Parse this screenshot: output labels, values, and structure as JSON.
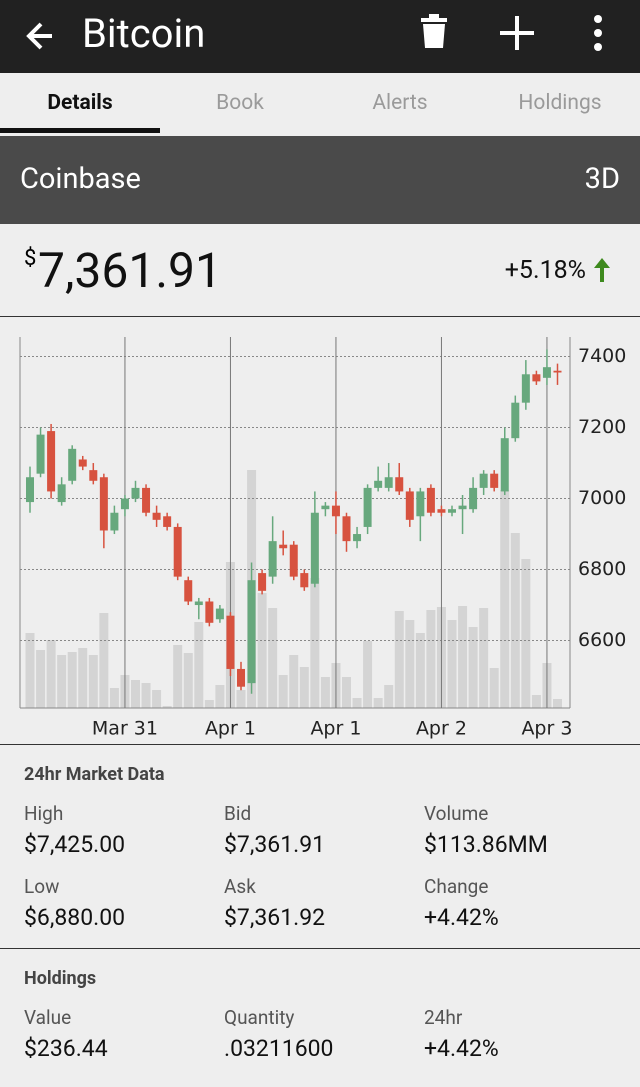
{
  "header": {
    "title": "Bitcoin"
  },
  "tabs": [
    "Details",
    "Book",
    "Alerts",
    "Holdings"
  ],
  "exchange": {
    "name": "Coinbase",
    "range": "3D"
  },
  "price": {
    "currency": "$",
    "value": "7,361.91",
    "change": "+5.18%"
  },
  "chart_data": {
    "type": "candlestick",
    "categories": [
      null,
      null,
      null,
      null,
      null,
      null,
      null,
      null,
      null,
      "Mar 31",
      null,
      null,
      null,
      null,
      null,
      null,
      null,
      null,
      null,
      "Apr 1",
      null,
      null,
      null,
      null,
      null,
      null,
      null,
      null,
      null,
      "Apr 1",
      null,
      null,
      null,
      null,
      null,
      null,
      null,
      null,
      null,
      "Apr 2",
      null,
      null,
      null,
      null,
      null,
      null,
      null,
      null,
      null,
      "Apr 3",
      null
    ],
    "open": [
      6990,
      7070,
      7190,
      6990,
      7050,
      7110,
      7080,
      7060,
      6910,
      6970,
      7000,
      7030,
      6960,
      6950,
      6920,
      6770,
      6700,
      6710,
      6660,
      6670,
      6520,
      6480,
      6790,
      6780,
      6870,
      6870,
      6790,
      6760,
      6970,
      6980,
      6950,
      6880,
      6920,
      7030,
      7030,
      7060,
      7020,
      6950,
      7030,
      6970,
      6960,
      6970,
      6970,
      7030,
      7070,
      7020,
      7170,
      7270,
      7350,
      7340,
      7360
    ],
    "high": [
      7090,
      7200,
      7210,
      7060,
      7150,
      7120,
      7100,
      7070,
      6980,
      7010,
      7050,
      7040,
      6980,
      6960,
      6930,
      6780,
      6720,
      6720,
      6700,
      6680,
      6540,
      6820,
      6800,
      6950,
      6910,
      6880,
      6800,
      7020,
      6990,
      7020,
      6960,
      6920,
      7040,
      7090,
      7100,
      7100,
      7030,
      7030,
      7040,
      6980,
      6980,
      7010,
      7060,
      7080,
      7080,
      7200,
      7290,
      7390,
      7360,
      7420,
      7380
    ],
    "low": [
      6960,
      7060,
      7000,
      6980,
      7040,
      7080,
      7040,
      6860,
      6900,
      6950,
      6990,
      6950,
      6920,
      6910,
      6770,
      6700,
      6660,
      6640,
      6650,
      6500,
      6460,
      6450,
      6730,
      6760,
      6840,
      6770,
      6740,
      6750,
      6950,
      6900,
      6850,
      6860,
      6900,
      7020,
      7020,
      7010,
      6920,
      6880,
      6950,
      6950,
      6950,
      6900,
      6960,
      7010,
      7020,
      7010,
      7160,
      7250,
      7320,
      7320,
      7320
    ],
    "close": [
      7060,
      7180,
      7020,
      7040,
      7140,
      7090,
      7050,
      6910,
      6960,
      7000,
      7030,
      6960,
      6940,
      6920,
      6780,
      6710,
      6710,
      6650,
      6690,
      6520,
      6470,
      6770,
      6740,
      6880,
      6860,
      6780,
      6750,
      6960,
      6980,
      6950,
      6880,
      6900,
      7030,
      7050,
      7060,
      7020,
      6940,
      7020,
      6960,
      6960,
      6970,
      6980,
      7030,
      7070,
      7030,
      7170,
      7270,
      7350,
      7330,
      7370,
      7355
    ],
    "volume": [
      75,
      58,
      68,
      53,
      56,
      60,
      53,
      95,
      20,
      33,
      28,
      25,
      18,
      2,
      63,
      55,
      86,
      8,
      23,
      146,
      18,
      238,
      115,
      100,
      33,
      53,
      41,
      130,
      31,
      45,
      31,
      10,
      67,
      10,
      23,
      97,
      88,
      75,
      98,
      101,
      88,
      102,
      81,
      100,
      40,
      218,
      175,
      149,
      13,
      45,
      9
    ],
    "ylim": [
      6410,
      7455
    ],
    "yticks": [
      6600,
      6800,
      7000,
      7200,
      7400
    ],
    "y2lim": [
      0,
      371
    ],
    "up_color": "#67a87d",
    "down_color": "#d7523f",
    "volume_color": "#d4d4d4",
    "grid": true
  },
  "market": {
    "title": "24hr Market Data",
    "items": [
      {
        "label": "High",
        "value": "$7,425.00"
      },
      {
        "label": "Bid",
        "value": "$7,361.91"
      },
      {
        "label": "Volume",
        "value": "$113.86MM"
      },
      {
        "label": "Low",
        "value": "$6,880.00"
      },
      {
        "label": "Ask",
        "value": "$7,361.92"
      },
      {
        "label": "Change",
        "value": "+4.42%"
      }
    ]
  },
  "holdings": {
    "title": "Holdings",
    "items": [
      {
        "label": "Value",
        "value": "$236.44"
      },
      {
        "label": "Quantity",
        "value": ".03211600"
      },
      {
        "label": "24hr",
        "value": "+4.42%"
      }
    ]
  }
}
